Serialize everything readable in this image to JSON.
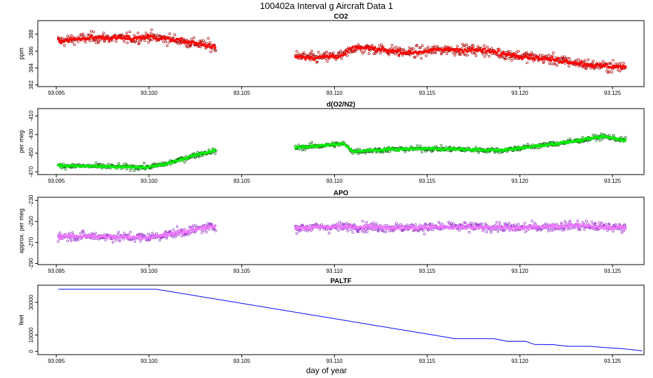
{
  "figure": {
    "title": "100402a   Interval g Aircraft Data 1",
    "xlabel": "day of year"
  },
  "chart_data": [
    {
      "type": "scatter",
      "title": "CO2",
      "ylabel": "ppm",
      "xlim": [
        93.094,
        93.1267
      ],
      "ylim": [
        381.8,
        389.6
      ],
      "xticks": [
        93.095,
        93.1,
        93.105,
        93.11,
        93.115,
        93.12,
        93.125
      ],
      "xtick_labels": [
        "93.095",
        "93.100",
        "93.105",
        "93.110",
        "93.115",
        "93.120",
        "93.125"
      ],
      "yticks": [
        382,
        384,
        386,
        388
      ],
      "ytick_labels": [
        "382",
        "384",
        "386",
        "388"
      ],
      "colors": {
        "raw": "#aa0000",
        "smooth": "#ff0000"
      },
      "segments": [
        {
          "x_start": 93.0951,
          "x_end": 93.1036,
          "trend": [
            [
              93.0951,
              387.2
            ],
            [
              93.097,
              387.6
            ],
            [
              93.099,
              387.5
            ],
            [
              93.1,
              387.7
            ],
            [
              93.1015,
              387.3
            ],
            [
              93.103,
              386.7
            ],
            [
              93.1036,
              386.5
            ]
          ]
        },
        {
          "x_start": 93.1079,
          "x_end": 93.1257,
          "trend": [
            [
              93.1079,
              385.4
            ],
            [
              93.109,
              385.2
            ],
            [
              93.1105,
              385.5
            ],
            [
              93.111,
              386.4
            ],
            [
              93.1125,
              386.2
            ],
            [
              93.114,
              385.8
            ],
            [
              93.116,
              386.2
            ],
            [
              93.118,
              386.1
            ],
            [
              93.119,
              385.7
            ],
            [
              93.121,
              385.2
            ],
            [
              93.1225,
              384.8
            ],
            [
              93.124,
              384.3
            ],
            [
              93.1257,
              384.1
            ]
          ]
        }
      ],
      "scatter_sd": 0.8
    },
    {
      "type": "scatter",
      "title": "d(O2/N2)",
      "ylabel": "per meg",
      "xlim": [
        93.094,
        93.1267
      ],
      "ylim": [
        -473,
        -402
      ],
      "xticks": [
        93.095,
        93.1,
        93.105,
        93.11,
        93.115,
        93.12,
        93.125
      ],
      "xtick_labels": [
        "93.095",
        "93.100",
        "93.105",
        "93.110",
        "93.115",
        "93.120",
        "93.125"
      ],
      "yticks": [
        -470,
        -450,
        -430,
        -410
      ],
      "ytick_labels": [
        "-470",
        "-450",
        "-430",
        "-410"
      ],
      "colors": {
        "raw": "#006600",
        "smooth": "#00ee00"
      },
      "segments": [
        {
          "x_start": 93.0951,
          "x_end": 93.1036,
          "trend": [
            [
              93.0951,
              -463.5
            ],
            [
              93.097,
              -464
            ],
            [
              93.099,
              -465
            ],
            [
              93.1,
              -465
            ],
            [
              93.101,
              -461
            ],
            [
              93.1025,
              -452
            ],
            [
              93.1036,
              -447
            ]
          ]
        },
        {
          "x_start": 93.1079,
          "x_end": 93.1257,
          "trend": [
            [
              93.1079,
              -444
            ],
            [
              93.1105,
              -440
            ],
            [
              93.111,
              -448
            ],
            [
              93.113,
              -446
            ],
            [
              93.115,
              -445
            ],
            [
              93.117,
              -446
            ],
            [
              93.119,
              -447
            ],
            [
              93.121,
              -442
            ],
            [
              93.123,
              -437
            ],
            [
              93.1245,
              -432
            ],
            [
              93.1257,
              -436
            ]
          ]
        }
      ],
      "scatter_sd": 3.5
    },
    {
      "type": "scatter",
      "title": "APO",
      "ylabel": "approx. per meg",
      "xlim": [
        93.094,
        93.1267
      ],
      "ylim": [
        -291,
        -227
      ],
      "xticks": [
        93.095,
        93.1,
        93.105,
        93.11,
        93.115,
        93.12,
        93.125
      ],
      "xtick_labels": [
        "93.095",
        "93.100",
        "93.105",
        "93.110",
        "93.115",
        "93.120",
        "93.125"
      ],
      "yticks": [
        -290,
        -270,
        -250,
        -230
      ],
      "ytick_labels": [
        "-290",
        "-270",
        "-250",
        "-230"
      ],
      "colors": {
        "raw": "#9933cc",
        "smooth": "#ee77ff"
      },
      "segments": [
        {
          "x_start": 93.0951,
          "x_end": 93.1036,
          "trend": [
            [
              93.0951,
              -264
            ],
            [
              93.097,
              -264
            ],
            [
              93.099,
              -265
            ],
            [
              93.1,
              -265
            ],
            [
              93.1015,
              -261
            ],
            [
              93.103,
              -256
            ],
            [
              93.1036,
              -255
            ]
          ]
        },
        {
          "x_start": 93.1079,
          "x_end": 93.1257,
          "trend": [
            [
              93.1079,
              -256
            ],
            [
              93.111,
              -255
            ],
            [
              93.114,
              -256
            ],
            [
              93.117,
              -255
            ],
            [
              93.12,
              -256
            ],
            [
              93.123,
              -254
            ],
            [
              93.1257,
              -256
            ]
          ]
        }
      ],
      "scatter_sd": 5.5
    },
    {
      "type": "line",
      "title": "PALTF",
      "ylabel": "feet",
      "xlim": [
        93.094,
        93.1267
      ],
      "ylim": [
        -2000,
        40500
      ],
      "xticks": [
        93.095,
        93.1,
        93.105,
        93.11,
        93.115,
        93.12,
        93.125
      ],
      "xtick_labels": [
        "93.095",
        "93.100",
        "93.105",
        "93.110",
        "93.115",
        "93.120",
        "93.125"
      ],
      "yticks": [
        0,
        10000,
        30000
      ],
      "ytick_labels": [
        "0",
        "10000",
        "30000"
      ],
      "colors": {
        "line": "#0000ff"
      },
      "points": [
        [
          93.0951,
          38000
        ],
        [
          93.1004,
          38000
        ],
        [
          93.1165,
          7800
        ],
        [
          93.1186,
          7800
        ],
        [
          93.1193,
          6200
        ],
        [
          93.1203,
          6200
        ],
        [
          93.1208,
          4200
        ],
        [
          93.1218,
          4100
        ],
        [
          93.1226,
          3100
        ],
        [
          93.1238,
          3100
        ],
        [
          93.1246,
          2300
        ],
        [
          93.1255,
          1700
        ],
        [
          93.1266,
          300
        ]
      ]
    }
  ]
}
